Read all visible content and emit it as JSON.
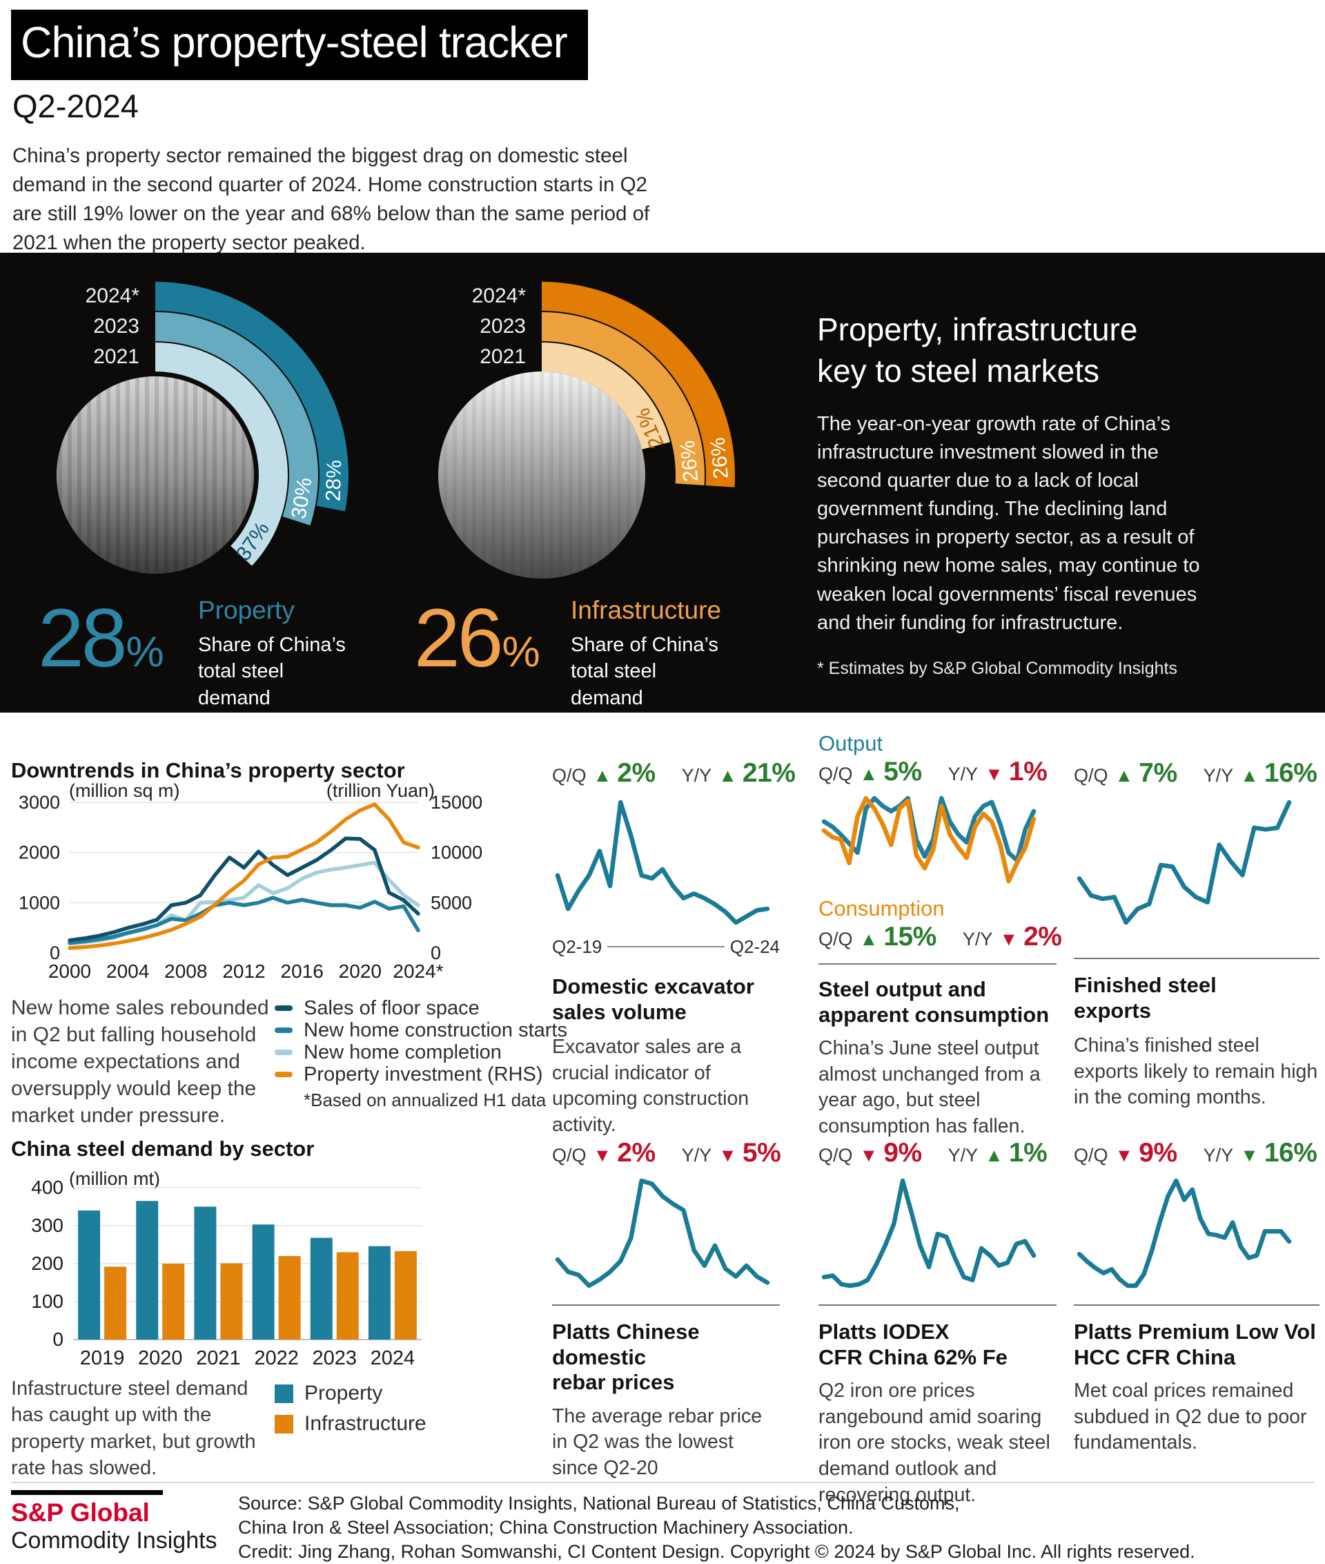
{
  "header": {
    "title": "China’s property-steel tracker",
    "subtitle": "Q2-2024",
    "intro": "China’s property sector remained the biggest drag on domestic steel demand in the second quarter of 2024. Home construction starts in Q2 are still 19% lower on the year and 68% below than the same period of 2021 when the property sector peaked."
  },
  "hero": {
    "headline_line1": "Property, infrastructure",
    "headline_line2": "key to steel markets",
    "body": "The year-on-year growth rate of China’s infrastructure investment slowed in the second quarter due to a lack of local government funding. The declining land purchases in property sector, as a result of shrinking new home sales, may continue to weaken local governments’ fiscal revenues and their funding for infrastructure.",
    "footnote": "* Estimates by S&P Global Commodity Insights"
  },
  "colors": {
    "teal": "#1a7b97",
    "teal_dark": "#11506b",
    "teal_mid": "#1f7f9c",
    "teal_light": "#a6cedb",
    "orange": "#e8890b",
    "property_accent": "#2f85a4",
    "infra_accent": "#f1a14b",
    "green": "#2a7d2f",
    "red": "#c0132b",
    "sp_red": "#d6002a"
  },
  "chart_data": [
    {
      "id": "property-share",
      "type": "pie",
      "subtype": "concentric-arc-rings",
      "title": "Property share of China’s total steel demand",
      "categories": [
        "2024*",
        "2023",
        "2021"
      ],
      "values": [
        28,
        30,
        37
      ],
      "unit": "%",
      "band_colors": [
        "#1b7b98",
        "#66abbf",
        "#c2dfe9"
      ],
      "value_label_colors": [
        "#ffffff",
        "#ffffff",
        "#0f5570"
      ],
      "headline_value": "28",
      "headline_unit": "%",
      "headline_label": "Property",
      "headline_caption": "Share of China’s total steel demand",
      "photo": "city"
    },
    {
      "id": "infrastructure-share",
      "type": "pie",
      "subtype": "concentric-arc-rings",
      "title": "Infrastructure share of China’s total steel demand",
      "categories": [
        "2024*",
        "2023",
        "2021"
      ],
      "values": [
        26,
        26,
        21
      ],
      "unit": "%",
      "band_colors": [
        "#e17d05",
        "#eda23e",
        "#f8d8a6"
      ],
      "value_label_colors": [
        "#ffffff",
        "#ffffff",
        "#b26a0e"
      ],
      "headline_value": "26",
      "headline_unit": "%",
      "headline_label": "Infrastructure",
      "headline_caption": "Share of China’s total steel demand",
      "photo": "bridge"
    },
    {
      "id": "property-downtrends",
      "type": "line",
      "title": "Downtrends in China’s property sector",
      "ylabel_left": "(million sq m)",
      "ylabel_right": "(trillion Yuan)",
      "ylim_left": [
        0,
        3000
      ],
      "ylim_right": [
        0,
        15000
      ],
      "yticks_left": [
        0,
        1000,
        2000,
        3000
      ],
      "yticks_right": [
        0,
        5000,
        10000,
        15000
      ],
      "years": [
        2000,
        2001,
        2002,
        2003,
        2004,
        2005,
        2006,
        2007,
        2008,
        2009,
        2010,
        2011,
        2012,
        2013,
        2014,
        2015,
        2016,
        2017,
        2018,
        2019,
        2020,
        2021,
        2022,
        2023,
        2024
      ],
      "xticks": [
        {
          "year": 2000,
          "label": "2000"
        },
        {
          "year": 2004,
          "label": "2004"
        },
        {
          "year": 2008,
          "label": "2008"
        },
        {
          "year": 2012,
          "label": "2012"
        },
        {
          "year": 2016,
          "label": "2016"
        },
        {
          "year": 2020,
          "label": "2020"
        },
        {
          "year": 2024,
          "label": "2024*"
        }
      ],
      "series": [
        {
          "name": "Sales of floor space",
          "axis": "left",
          "color": "#11506b",
          "values": [
            250,
            290,
            340,
            410,
            500,
            570,
            660,
            950,
            1000,
            1150,
            1550,
            1900,
            1700,
            2020,
            1750,
            1550,
            1700,
            1850,
            2050,
            2280,
            2270,
            2050,
            1200,
            1050,
            780
          ]
        },
        {
          "name": "New home construction starts",
          "axis": "left",
          "color": "#1f7f9c",
          "values": [
            200,
            230,
            270,
            320,
            400,
            470,
            550,
            680,
            650,
            780,
            950,
            1000,
            950,
            1000,
            1100,
            1000,
            1060,
            1000,
            950,
            950,
            900,
            1020,
            880,
            930,
            450
          ]
        },
        {
          "name": "New home completion",
          "axis": "left",
          "color": "#a6cedb",
          "values": [
            185,
            210,
            245,
            295,
            390,
            450,
            560,
            750,
            650,
            1000,
            1010,
            1050,
            1100,
            1350,
            1190,
            1290,
            1480,
            1600,
            1660,
            1700,
            1750,
            1800,
            1450,
            1150,
            950
          ]
        },
        {
          "name": "Property investment (RHS)",
          "axis": "right",
          "color": "#e8890b",
          "values": [
            480,
            580,
            720,
            920,
            1180,
            1480,
            1850,
            2300,
            2900,
            3600,
            4800,
            6100,
            7200,
            8800,
            9500,
            9600,
            10300,
            11000,
            12100,
            13300,
            14200,
            14800,
            13300,
            11000,
            10500
          ]
        }
      ],
      "legend_footnote": "*Based on annualized H1 data",
      "caption": "New home sales rebounded in Q2 but falling household income expectations and oversupply would keep the market under pressure."
    },
    {
      "id": "excavator",
      "type": "line",
      "title_lines": [
        "Domestic excavator",
        "sales volume"
      ],
      "caption": "Excavator sales are a crucial indicator of upcoming construction activity.",
      "stats": [
        {
          "label": "Q/Q",
          "dir": "up",
          "value": "2%",
          "tone": "green"
        },
        {
          "label": "Y/Y",
          "dir": "up",
          "value": "21%",
          "tone": "green"
        }
      ],
      "x_range": [
        "Q2-19",
        "Q2-24"
      ],
      "unit": "indexed quarterly level (no axis shown)",
      "values": [
        52,
        30,
        42,
        52,
        68,
        45,
        100,
        78,
        52,
        50,
        56,
        45,
        37,
        40,
        37,
        33,
        28,
        21,
        25,
        29,
        30
      ]
    },
    {
      "id": "output-consumption",
      "type": "line",
      "title_lines": [
        "Steel output and",
        "apparent consumption"
      ],
      "caption": "China’s June steel output almost unchanged from a year ago, but steel consumption has fallen.",
      "unit": "indexed monthly level (no axis shown)",
      "series": [
        {
          "name": "Output",
          "color": "#1f7f9c",
          "stats": [
            {
              "label": "Q/Q",
              "dir": "up",
              "value": "5%",
              "tone": "green"
            },
            {
              "label": "Y/Y",
              "dir": "down",
              "value": "1%",
              "tone": "red"
            }
          ],
          "values": [
            62,
            58,
            52,
            45,
            38,
            72,
            80,
            74,
            70,
            74,
            80,
            48,
            35,
            48,
            80,
            62,
            52,
            46,
            66,
            74,
            77,
            60,
            38,
            32,
            56,
            70
          ]
        },
        {
          "name": "Consumption",
          "color": "#e8890b",
          "stats": [
            {
              "label": "Q/Q",
              "dir": "up",
              "value": "15%",
              "tone": "green"
            },
            {
              "label": "Y/Y",
              "dir": "down",
              "value": "2%",
              "tone": "red"
            }
          ],
          "values": [
            55,
            50,
            48,
            30,
            66,
            80,
            72,
            60,
            44,
            72,
            78,
            36,
            26,
            40,
            74,
            52,
            42,
            34,
            58,
            68,
            62,
            44,
            16,
            30,
            42,
            64
          ]
        }
      ]
    },
    {
      "id": "steel-exports",
      "type": "line",
      "title_lines": [
        "Finished steel",
        "exports"
      ],
      "caption": "China’s finished steel exports likely to remain high in the coming months.",
      "stats": [
        {
          "label": "Q/Q",
          "dir": "up",
          "value": "7%",
          "tone": "green"
        },
        {
          "label": "Y/Y",
          "dir": "up",
          "value": "16%",
          "tone": "green"
        }
      ],
      "unit": "indexed quarterly level (no axis shown)",
      "values": [
        55,
        45,
        43,
        44,
        29,
        37,
        40,
        63,
        62,
        50,
        44,
        41,
        75,
        65,
        57,
        85,
        84,
        85,
        100
      ]
    },
    {
      "id": "rebar",
      "type": "line",
      "title_lines": [
        "Platts Chinese domestic",
        "rebar prices"
      ],
      "caption": "The average rebar price in Q2 was the lowest since Q2-20",
      "stats": [
        {
          "label": "Q/Q",
          "dir": "down",
          "value": "2%",
          "tone": "red"
        },
        {
          "label": "Y/Y",
          "dir": "down",
          "value": "5%",
          "tone": "red"
        }
      ],
      "unit": "indexed quarterly level (no axis shown)",
      "values": [
        46,
        38,
        36,
        29,
        33,
        38,
        45,
        60,
        97,
        95,
        87,
        82,
        78,
        52,
        42,
        55,
        40,
        35,
        42,
        35,
        31
      ]
    },
    {
      "id": "iodex",
      "type": "line",
      "title_lines": [
        "Platts IODEX",
        "CFR China 62% Fe"
      ],
      "caption": "Q2 iron ore prices rangebound amid soaring iron ore stocks, weak steel demand outlook and recovering output.",
      "stats": [
        {
          "label": "Q/Q",
          "dir": "down",
          "value": "9%",
          "tone": "red"
        },
        {
          "label": "Y/Y",
          "dir": "up",
          "value": "1%",
          "tone": "green"
        }
      ],
      "unit": "indexed monthly level (no axis shown)",
      "values": [
        33,
        34,
        28,
        27,
        28,
        31,
        42,
        55,
        70,
        100,
        78,
        55,
        40,
        63,
        61,
        46,
        33,
        31,
        53,
        48,
        41,
        43,
        56,
        58,
        48
      ]
    },
    {
      "id": "hcc",
      "type": "line",
      "title_lines": [
        "Platts Premium Low Vol",
        "HCC CFR China"
      ],
      "caption": "Met coal prices remained subdued in Q2 due to poor fundamentals.",
      "stats": [
        {
          "label": "Q/Q",
          "dir": "down",
          "value": "9%",
          "tone": "red"
        },
        {
          "label": "Y/Y",
          "dir": "down",
          "value": "16%",
          "tone": "green"
        }
      ],
      "unit": "indexed monthly level (no axis shown)",
      "values": [
        42,
        36,
        31,
        27,
        30,
        22,
        17,
        17,
        26,
        45,
        68,
        88,
        100,
        85,
        93,
        70,
        58,
        57,
        55,
        67,
        48,
        39,
        41,
        60,
        60,
        60,
        52
      ]
    },
    {
      "id": "steel-demand-by-sector",
      "type": "bar",
      "title": "China steel demand by sector",
      "ylabel": "(million mt)",
      "ylim": [
        0,
        400
      ],
      "yticks": [
        0,
        100,
        200,
        300,
        400
      ],
      "categories": [
        "2019",
        "2020",
        "2021",
        "2022",
        "2023",
        "2024"
      ],
      "series": [
        {
          "name": "Property",
          "color": "#1d7f9b",
          "values": [
            340,
            365,
            350,
            303,
            268,
            246
          ]
        },
        {
          "name": "Infrastructure",
          "color": "#e2830c",
          "values": [
            192,
            200,
            201,
            220,
            230,
            233
          ]
        }
      ],
      "caption": "Infastructure steel demand has caught up with the property market, but growth rate has slowed."
    }
  ],
  "footer": {
    "brand_line1": "S&P Global",
    "brand_line2": "Commodity Insights",
    "source_line1": "Source: S&P Global Commodity Insights, National Bureau of Statistics, China Customs,",
    "source_line2": "China Iron & Steel Association; China Construction Machinery Association.",
    "credit_line": "Credit: Jing Zhang, Rohan Somwanshi, CI Content Design.  Copyright © 2024 by S&P Global Inc.  All rights reserved."
  }
}
